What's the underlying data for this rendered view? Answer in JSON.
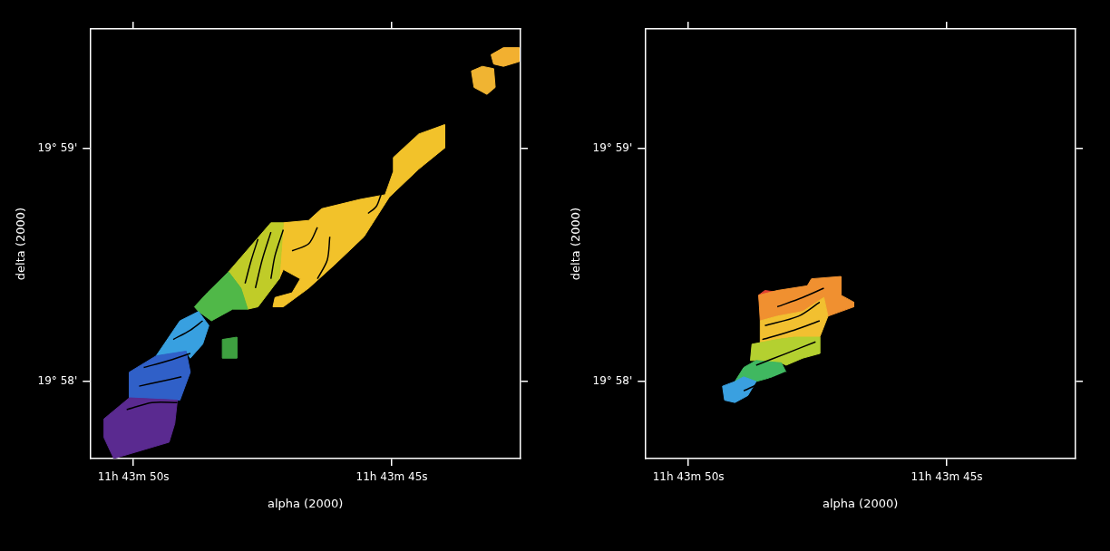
{
  "chart_data": [
    {
      "type": "scatter",
      "x_label": "alpha (2000)",
      "y_label": "delta (2000)",
      "xlim": [
        50.84,
        42.51
      ],
      "ylim": [
        57.67,
        59.51
      ],
      "xticks": [
        {
          "value": 50,
          "label": "11h 43m 50s"
        },
        {
          "value": 45,
          "label": "11h 43m 45s"
        }
      ],
      "yticks": [
        {
          "value": 58,
          "label": "19° 58'"
        },
        {
          "value": 59,
          "label": "19° 59'"
        }
      ],
      "grid": false,
      "series": [
        {
          "color": "#5a2a90",
          "values": [
            [
              50.57,
              57.84
            ],
            [
              50.08,
              57.93
            ],
            [
              49.15,
              57.92
            ],
            [
              49.2,
              57.82
            ],
            [
              49.31,
              57.74
            ],
            [
              50.38,
              57.67
            ],
            [
              50.57,
              57.76
            ]
          ]
        },
        {
          "color": "#3060c8",
          "values": [
            [
              50.08,
              57.93
            ],
            [
              50.08,
              58.04
            ],
            [
              49.56,
              58.11
            ],
            [
              48.98,
              58.13
            ],
            [
              48.9,
              58.04
            ],
            [
              49.1,
              57.92
            ]
          ]
        },
        {
          "color": "#38a0e0",
          "values": [
            [
              49.56,
              58.11
            ],
            [
              49.1,
              58.26
            ],
            [
              48.74,
              58.3
            ],
            [
              48.54,
              58.24
            ],
            [
              48.66,
              58.16
            ],
            [
              48.9,
              58.1
            ],
            [
              48.98,
              58.13
            ]
          ]
        },
        {
          "color": "#50b848",
          "values": [
            [
              48.82,
              58.32
            ],
            [
              48.57,
              58.38
            ],
            [
              48.16,
              58.47
            ],
            [
              47.92,
              58.4
            ],
            [
              47.79,
              58.31
            ],
            [
              48.08,
              58.31
            ],
            [
              48.49,
              58.26
            ],
            [
              48.74,
              58.3
            ]
          ]
        },
        {
          "color": "#c0cc28",
          "values": [
            [
              48.16,
              58.47
            ],
            [
              47.34,
              58.68
            ],
            [
              47.1,
              58.68
            ],
            [
              47.18,
              58.44
            ],
            [
              47.59,
              58.32
            ],
            [
              47.79,
              58.31
            ],
            [
              47.92,
              58.4
            ]
          ]
        },
        {
          "color": "#f2c22a",
          "values": [
            [
              47.1,
              58.68
            ],
            [
              46.61,
              58.69
            ],
            [
              46.36,
              58.74
            ],
            [
              45.62,
              58.78
            ],
            [
              45.13,
              58.8
            ],
            [
              44.97,
              58.9
            ],
            [
              44.97,
              58.96
            ],
            [
              44.48,
              59.06
            ],
            [
              43.98,
              59.1
            ],
            [
              43.98,
              59.0
            ],
            [
              44.48,
              58.91
            ],
            [
              45.05,
              58.79
            ],
            [
              45.54,
              58.62
            ],
            [
              46.11,
              58.5
            ],
            [
              46.61,
              58.4
            ],
            [
              47.1,
              58.32
            ],
            [
              47.3,
              58.32
            ],
            [
              47.26,
              58.36
            ],
            [
              46.93,
              58.38
            ],
            [
              46.77,
              58.44
            ],
            [
              47.1,
              58.48
            ],
            [
              47.18,
              58.44
            ]
          ]
        },
        {
          "color": "#f0b432",
          "values": [
            [
              43.46,
              59.33
            ],
            [
              43.25,
              59.35
            ],
            [
              43.03,
              59.34
            ],
            [
              43.0,
              59.26
            ],
            [
              43.16,
              59.23
            ],
            [
              43.41,
              59.26
            ]
          ]
        },
        {
          "color": "#f2b030",
          "values": [
            [
              43.08,
              59.4
            ],
            [
              42.84,
              59.43
            ],
            [
              42.54,
              59.43
            ],
            [
              42.54,
              59.37
            ],
            [
              42.84,
              59.35
            ],
            [
              43.03,
              59.36
            ]
          ]
        },
        {
          "color": "#3ea040",
          "values": [
            [
              48.28,
              58.18
            ],
            [
              48.0,
              58.19
            ],
            [
              48.0,
              58.1
            ],
            [
              48.28,
              58.1
            ]
          ]
        }
      ],
      "contours": [
        {
          "color": "#000000",
          "values": [
            [
              50.13,
              57.88
            ],
            [
              49.64,
              57.91
            ],
            [
              49.15,
              57.91
            ]
          ]
        },
        {
          "color": "#000000",
          "values": [
            [
              49.89,
              57.98
            ],
            [
              49.48,
              58.0
            ],
            [
              49.07,
              58.02
            ]
          ]
        },
        {
          "color": "#000000",
          "values": [
            [
              49.8,
              58.06
            ],
            [
              49.31,
              58.09
            ],
            [
              48.9,
              58.12
            ]
          ]
        },
        {
          "color": "#000000",
          "values": [
            [
              49.23,
              58.18
            ],
            [
              48.9,
              58.22
            ],
            [
              48.66,
              58.26
            ]
          ]
        },
        {
          "color": "#000000",
          "values": [
            [
              47.84,
              58.42
            ],
            [
              47.72,
              58.52
            ],
            [
              47.59,
              58.61
            ]
          ]
        },
        {
          "color": "#000000",
          "values": [
            [
              47.64,
              58.4
            ],
            [
              47.51,
              58.52
            ],
            [
              47.34,
              58.64
            ]
          ]
        },
        {
          "color": "#000000",
          "values": [
            [
              47.34,
              58.44
            ],
            [
              47.26,
              58.54
            ],
            [
              47.1,
              58.65
            ]
          ]
        },
        {
          "color": "#000000",
          "values": [
            [
              46.93,
              58.56
            ],
            [
              46.61,
              58.59
            ],
            [
              46.44,
              58.66
            ]
          ]
        },
        {
          "color": "#000000",
          "values": [
            [
              46.44,
              58.44
            ],
            [
              46.25,
              58.52
            ],
            [
              46.2,
              58.62
            ]
          ]
        },
        {
          "color": "#000000",
          "values": [
            [
              45.46,
              58.72
            ],
            [
              45.3,
              58.75
            ],
            [
              45.21,
              58.8
            ]
          ]
        }
      ]
    },
    {
      "type": "scatter",
      "x_label": "alpha (2000)",
      "y_label": "delta (2000)",
      "xlim": [
        50.84,
        42.51
      ],
      "ylim": [
        57.67,
        59.51
      ],
      "xticks": [
        {
          "value": 50,
          "label": "11h 43m 50s"
        },
        {
          "value": 45,
          "label": "11h 43m 45s"
        }
      ],
      "yticks": [
        {
          "value": 58,
          "label": "19° 58'"
        },
        {
          "value": 59,
          "label": "19° 59'"
        }
      ],
      "grid": false,
      "series": [
        {
          "color": "#3aa0e0",
          "values": [
            [
              49.34,
              57.98
            ],
            [
              49.1,
              58.0
            ],
            [
              48.93,
              58.02
            ],
            [
              48.69,
              58.0
            ],
            [
              48.85,
              57.94
            ],
            [
              49.1,
              57.91
            ],
            [
              49.3,
              57.92
            ]
          ]
        },
        {
          "color": "#40b860",
          "values": [
            [
              49.1,
              58.0
            ],
            [
              48.93,
              58.06
            ],
            [
              48.69,
              58.09
            ],
            [
              48.2,
              58.08
            ],
            [
              48.11,
              58.04
            ],
            [
              48.36,
              58.02
            ],
            [
              48.69,
              58.0
            ],
            [
              48.93,
              58.02
            ]
          ]
        },
        {
          "color": "#b4d030",
          "values": [
            [
              48.8,
              58.09
            ],
            [
              48.77,
              58.16
            ],
            [
              48.28,
              58.18
            ],
            [
              47.95,
              58.19
            ],
            [
              47.46,
              58.19
            ],
            [
              47.46,
              58.12
            ],
            [
              47.79,
              58.1
            ],
            [
              48.11,
              58.07
            ],
            [
              48.2,
              58.08
            ],
            [
              48.69,
              58.09
            ]
          ]
        },
        {
          "color": "#f2c030",
          "values": [
            [
              48.61,
              58.16
            ],
            [
              48.61,
              58.26
            ],
            [
              48.28,
              58.28
            ],
            [
              47.79,
              58.3
            ],
            [
              47.38,
              58.36
            ],
            [
              47.3,
              58.28
            ],
            [
              47.46,
              58.19
            ],
            [
              47.95,
              58.19
            ],
            [
              48.28,
              58.18
            ]
          ]
        },
        {
          "color": "#f09030",
          "values": [
            [
              48.61,
              58.26
            ],
            [
              48.64,
              58.37
            ],
            [
              48.28,
              58.39
            ],
            [
              47.7,
              58.41
            ],
            [
              47.62,
              58.44
            ],
            [
              47.05,
              58.45
            ],
            [
              47.05,
              58.37
            ],
            [
              46.8,
              58.34
            ],
            [
              46.8,
              58.32
            ],
            [
              47.3,
              58.28
            ],
            [
              47.38,
              58.36
            ],
            [
              47.79,
              58.3
            ],
            [
              48.28,
              58.28
            ]
          ]
        },
        {
          "color": "#e04030",
          "values": [
            [
              48.64,
              58.37
            ],
            [
              48.52,
              58.39
            ],
            [
              48.2,
              58.38
            ],
            [
              48.11,
              58.33
            ],
            [
              48.36,
              58.31
            ],
            [
              48.61,
              58.31
            ]
          ]
        }
      ],
      "contours": [
        {
          "color": "#000000",
          "values": [
            [
              48.93,
              57.96
            ],
            [
              48.44,
              58.01
            ],
            [
              48.11,
              58.04
            ]
          ]
        },
        {
          "color": "#000000",
          "values": [
            [
              48.69,
              58.07
            ],
            [
              48.11,
              58.12
            ],
            [
              47.54,
              58.17
            ]
          ]
        },
        {
          "color": "#000000",
          "values": [
            [
              48.57,
              58.18
            ],
            [
              47.95,
              58.22
            ],
            [
              47.46,
              58.26
            ]
          ]
        },
        {
          "color": "#000000",
          "values": [
            [
              48.52,
              58.24
            ],
            [
              47.87,
              58.28
            ],
            [
              47.46,
              58.34
            ]
          ]
        },
        {
          "color": "#000000",
          "values": [
            [
              48.28,
              58.32
            ],
            [
              47.79,
              58.36
            ],
            [
              47.38,
              58.4
            ]
          ]
        }
      ]
    }
  ]
}
